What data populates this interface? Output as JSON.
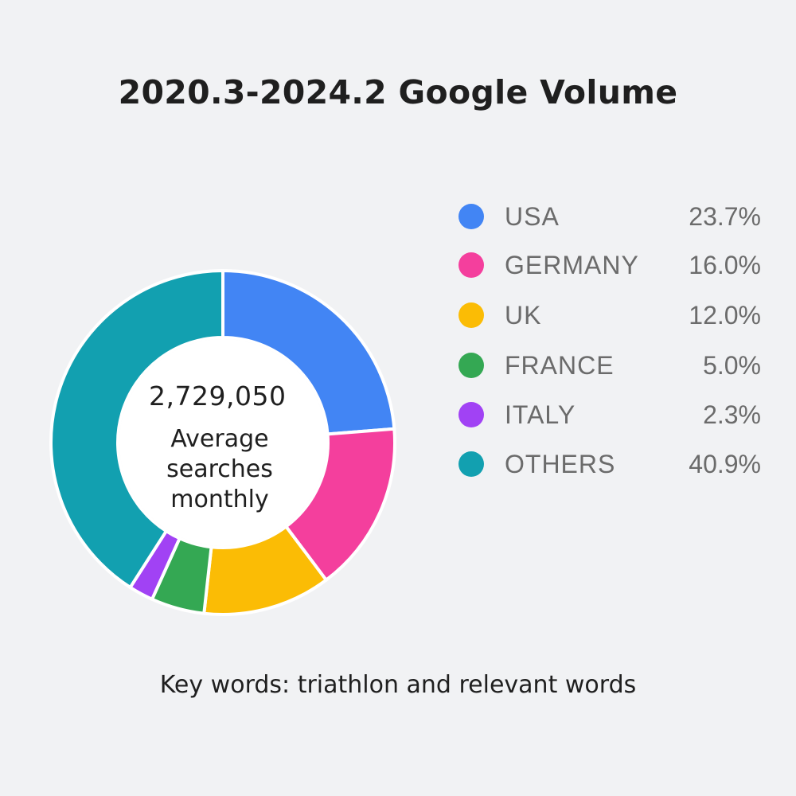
{
  "title": "2020.3-2024.2 Google Volume",
  "center": {
    "value": "2,729,050",
    "caption": "Average searches monthly"
  },
  "footer": "Key words: triathlon and relevant words",
  "chart_data": {
    "type": "pie",
    "title": "2020.3-2024.2 Google Volume",
    "categories": [
      "USA",
      "GERMANY",
      "UK",
      "FRANCE",
      "ITALY",
      "OTHERS"
    ],
    "values": [
      23.7,
      16.0,
      12.0,
      5.0,
      2.3,
      40.9
    ],
    "value_labels": [
      "23.7%",
      "16.0%",
      "12.0%",
      "5.0%",
      "2.3%",
      "40.9%"
    ],
    "colors": [
      "#4285f4",
      "#f43f9d",
      "#fbbc05",
      "#34a853",
      "#a142f4",
      "#12a0b0"
    ],
    "legend_placement": "right",
    "donut": true
  }
}
